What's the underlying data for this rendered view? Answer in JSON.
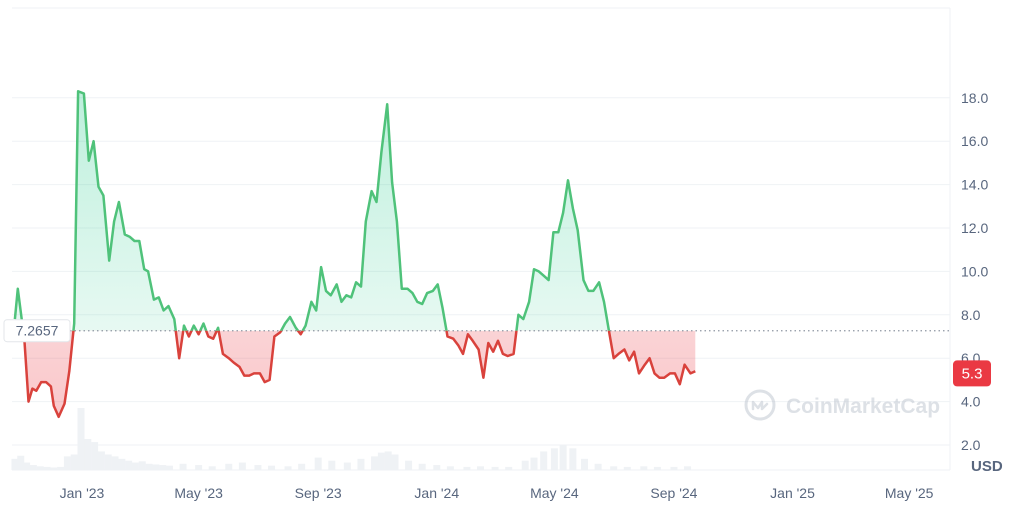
{
  "chart_data": {
    "type": "line",
    "currency_label": "USD",
    "baseline": {
      "value": 7.2657,
      "label": "7.2657"
    },
    "last_price": {
      "value": 5.3,
      "label": "5.3"
    },
    "y_ticks": [
      "2.0",
      "4.0",
      "6.0",
      "8.0",
      "10.0",
      "12.0",
      "14.0",
      "16.0",
      "18.0"
    ],
    "ylim": [
      0,
      20
    ],
    "x_ticks": [
      {
        "date": "2023-01-01",
        "label": "Jan '23"
      },
      {
        "date": "2023-05-01",
        "label": "May '23"
      },
      {
        "date": "2023-09-01",
        "label": "Sep '23"
      },
      {
        "date": "2024-01-01",
        "label": "Jan '24"
      },
      {
        "date": "2024-05-01",
        "label": "May '24"
      },
      {
        "date": "2024-09-01",
        "label": "Sep '24"
      },
      {
        "date": "2025-01-01",
        "label": "Jan '25"
      },
      {
        "date": "2025-05-01",
        "label": "May '25"
      }
    ],
    "xlim": [
      "2022-10-21",
      "2025-06-12"
    ],
    "grid": true,
    "colors": {
      "up": "#16c784",
      "up_line": "#4fc27a",
      "down": "#ea3943",
      "down_line": "#d9423c",
      "volume": "#eff2f5"
    },
    "series": [
      {
        "values": [
          [
            "2022-10-24",
            7.8
          ],
          [
            "2022-10-27",
            9.2
          ],
          [
            "2022-10-31",
            7.8
          ],
          [
            "2022-11-03",
            6.7
          ],
          [
            "2022-11-07",
            4.0
          ],
          [
            "2022-11-11",
            4.6
          ],
          [
            "2022-11-15",
            4.5
          ],
          [
            "2022-11-20",
            4.9
          ],
          [
            "2022-11-25",
            4.9
          ],
          [
            "2022-11-30",
            4.7
          ],
          [
            "2022-12-03",
            3.8
          ],
          [
            "2022-12-08",
            3.3
          ],
          [
            "2022-12-14",
            3.9
          ],
          [
            "2022-12-19",
            5.4
          ],
          [
            "2022-12-24",
            7.6
          ],
          [
            "2022-12-28",
            18.3
          ],
          [
            "2023-01-03",
            18.2
          ],
          [
            "2023-01-08",
            15.1
          ],
          [
            "2023-01-13",
            16.0
          ],
          [
            "2023-01-18",
            13.9
          ],
          [
            "2023-01-23",
            13.5
          ],
          [
            "2023-01-29",
            10.5
          ],
          [
            "2023-02-03",
            12.3
          ],
          [
            "2023-02-08",
            13.2
          ],
          [
            "2023-02-14",
            11.7
          ],
          [
            "2023-02-19",
            11.6
          ],
          [
            "2023-02-24",
            11.4
          ],
          [
            "2023-03-01",
            11.4
          ],
          [
            "2023-03-06",
            10.1
          ],
          [
            "2023-03-10",
            10.0
          ],
          [
            "2023-03-16",
            8.7
          ],
          [
            "2023-03-21",
            8.8
          ],
          [
            "2023-03-26",
            8.2
          ],
          [
            "2023-03-31",
            8.4
          ],
          [
            "2023-04-06",
            7.8
          ],
          [
            "2023-04-11",
            6.0
          ],
          [
            "2023-04-16",
            7.5
          ],
          [
            "2023-04-21",
            7.0
          ],
          [
            "2023-04-26",
            7.5
          ],
          [
            "2023-05-01",
            7.1
          ],
          [
            "2023-05-06",
            7.6
          ],
          [
            "2023-05-11",
            7.0
          ],
          [
            "2023-05-16",
            6.9
          ],
          [
            "2023-05-21",
            7.4
          ],
          [
            "2023-05-26",
            6.2
          ],
          [
            "2023-06-01",
            6.0
          ],
          [
            "2023-06-06",
            5.8
          ],
          [
            "2023-06-12",
            5.6
          ],
          [
            "2023-06-17",
            5.2
          ],
          [
            "2023-06-22",
            5.2
          ],
          [
            "2023-06-27",
            5.3
          ],
          [
            "2023-07-03",
            5.3
          ],
          [
            "2023-07-08",
            4.9
          ],
          [
            "2023-07-13",
            5.0
          ],
          [
            "2023-07-18",
            7.0
          ],
          [
            "2023-07-24",
            7.2
          ],
          [
            "2023-07-29",
            7.6
          ],
          [
            "2023-08-03",
            7.9
          ],
          [
            "2023-08-09",
            7.4
          ],
          [
            "2023-08-14",
            7.1
          ],
          [
            "2023-08-19",
            7.5
          ],
          [
            "2023-08-25",
            8.6
          ],
          [
            "2023-08-30",
            8.2
          ],
          [
            "2023-09-04",
            10.2
          ],
          [
            "2023-09-09",
            9.1
          ],
          [
            "2023-09-14",
            8.9
          ],
          [
            "2023-09-20",
            9.4
          ],
          [
            "2023-09-25",
            8.6
          ],
          [
            "2023-09-30",
            8.9
          ],
          [
            "2023-10-05",
            8.8
          ],
          [
            "2023-10-10",
            9.5
          ],
          [
            "2023-10-15",
            9.3
          ],
          [
            "2023-10-20",
            12.3
          ],
          [
            "2023-10-26",
            13.7
          ],
          [
            "2023-10-31",
            13.2
          ],
          [
            "2023-11-05",
            15.5
          ],
          [
            "2023-11-11",
            17.7
          ],
          [
            "2023-11-16",
            14.1
          ],
          [
            "2023-11-21",
            12.3
          ],
          [
            "2023-11-26",
            9.2
          ],
          [
            "2023-12-02",
            9.2
          ],
          [
            "2023-12-07",
            9.0
          ],
          [
            "2023-12-12",
            8.6
          ],
          [
            "2023-12-17",
            8.5
          ],
          [
            "2023-12-22",
            9.0
          ],
          [
            "2023-12-28",
            9.1
          ],
          [
            "2024-01-02",
            9.4
          ],
          [
            "2024-01-07",
            8.3
          ],
          [
            "2024-01-12",
            7.0
          ],
          [
            "2024-01-18",
            6.9
          ],
          [
            "2024-01-23",
            6.6
          ],
          [
            "2024-01-28",
            6.2
          ],
          [
            "2024-02-02",
            7.1
          ],
          [
            "2024-02-07",
            6.8
          ],
          [
            "2024-02-13",
            6.4
          ],
          [
            "2024-02-18",
            5.1
          ],
          [
            "2024-02-23",
            6.7
          ],
          [
            "2024-02-28",
            6.3
          ],
          [
            "2024-03-04",
            6.8
          ],
          [
            "2024-03-09",
            6.2
          ],
          [
            "2024-03-14",
            6.1
          ],
          [
            "2024-03-20",
            6.2
          ],
          [
            "2024-03-25",
            8.0
          ],
          [
            "2024-03-30",
            7.8
          ],
          [
            "2024-04-05",
            8.6
          ],
          [
            "2024-04-10",
            10.1
          ],
          [
            "2024-04-15",
            10.0
          ],
          [
            "2024-04-20",
            9.8
          ],
          [
            "2024-04-25",
            9.6
          ],
          [
            "2024-04-30",
            11.8
          ],
          [
            "2024-05-05",
            11.8
          ],
          [
            "2024-05-10",
            12.7
          ],
          [
            "2024-05-15",
            14.2
          ],
          [
            "2024-05-20",
            12.9
          ],
          [
            "2024-05-25",
            11.9
          ],
          [
            "2024-05-31",
            9.6
          ],
          [
            "2024-06-05",
            9.1
          ],
          [
            "2024-06-10",
            9.1
          ],
          [
            "2024-06-16",
            9.5
          ],
          [
            "2024-06-21",
            8.6
          ],
          [
            "2024-06-26",
            7.3
          ],
          [
            "2024-07-01",
            6.0
          ],
          [
            "2024-07-06",
            6.2
          ],
          [
            "2024-07-12",
            6.4
          ],
          [
            "2024-07-17",
            5.9
          ],
          [
            "2024-07-22",
            6.3
          ],
          [
            "2024-07-27",
            5.3
          ],
          [
            "2024-08-02",
            5.7
          ],
          [
            "2024-08-07",
            6.0
          ],
          [
            "2024-08-12",
            5.3
          ],
          [
            "2024-08-17",
            5.1
          ],
          [
            "2024-08-22",
            5.1
          ],
          [
            "2024-08-28",
            5.3
          ],
          [
            "2024-09-02",
            5.3
          ],
          [
            "2024-09-07",
            4.8
          ],
          [
            "2024-09-12",
            5.7
          ],
          [
            "2024-09-18",
            5.3
          ],
          [
            "2024-09-23",
            5.4
          ]
        ]
      }
    ],
    "volume": [
      [
        "2022-10-24",
        0.18
      ],
      [
        "2022-10-30",
        0.23
      ],
      [
        "2022-11-05",
        0.12
      ],
      [
        "2022-11-12",
        0.08
      ],
      [
        "2022-11-19",
        0.06
      ],
      [
        "2022-11-26",
        0.05
      ],
      [
        "2022-12-03",
        0.04
      ],
      [
        "2022-12-10",
        0.05
      ],
      [
        "2022-12-17",
        0.22
      ],
      [
        "2022-12-24",
        0.25
      ],
      [
        "2022-12-31",
        1.0
      ],
      [
        "2023-01-07",
        0.5
      ],
      [
        "2023-01-14",
        0.45
      ],
      [
        "2023-01-21",
        0.3
      ],
      [
        "2023-01-28",
        0.25
      ],
      [
        "2023-02-04",
        0.22
      ],
      [
        "2023-02-11",
        0.18
      ],
      [
        "2023-02-18",
        0.15
      ],
      [
        "2023-02-25",
        0.12
      ],
      [
        "2023-03-04",
        0.14
      ],
      [
        "2023-03-11",
        0.1
      ],
      [
        "2023-03-18",
        0.09
      ],
      [
        "2023-03-25",
        0.08
      ],
      [
        "2023-04-01",
        0.07
      ],
      [
        "2023-04-15",
        0.1
      ],
      [
        "2023-05-01",
        0.08
      ],
      [
        "2023-05-15",
        0.06
      ],
      [
        "2023-06-01",
        0.1
      ],
      [
        "2023-06-15",
        0.12
      ],
      [
        "2023-07-01",
        0.08
      ],
      [
        "2023-07-15",
        0.07
      ],
      [
        "2023-08-01",
        0.06
      ],
      [
        "2023-08-15",
        0.1
      ],
      [
        "2023-09-01",
        0.2
      ],
      [
        "2023-09-15",
        0.15
      ],
      [
        "2023-10-01",
        0.12
      ],
      [
        "2023-10-15",
        0.18
      ],
      [
        "2023-10-29",
        0.22
      ],
      [
        "2023-11-05",
        0.28
      ],
      [
        "2023-11-12",
        0.3
      ],
      [
        "2023-11-19",
        0.25
      ],
      [
        "2023-12-03",
        0.15
      ],
      [
        "2023-12-17",
        0.1
      ],
      [
        "2024-01-01",
        0.08
      ],
      [
        "2024-01-15",
        0.06
      ],
      [
        "2024-02-01",
        0.05
      ],
      [
        "2024-02-15",
        0.06
      ],
      [
        "2024-03-01",
        0.05
      ],
      [
        "2024-03-15",
        0.05
      ],
      [
        "2024-04-01",
        0.15
      ],
      [
        "2024-04-10",
        0.2
      ],
      [
        "2024-04-20",
        0.3
      ],
      [
        "2024-05-01",
        0.35
      ],
      [
        "2024-05-10",
        0.4
      ],
      [
        "2024-05-20",
        0.35
      ],
      [
        "2024-06-01",
        0.18
      ],
      [
        "2024-06-15",
        0.1
      ],
      [
        "2024-07-01",
        0.06
      ],
      [
        "2024-07-15",
        0.05
      ],
      [
        "2024-08-01",
        0.06
      ],
      [
        "2024-08-15",
        0.05
      ],
      [
        "2024-09-01",
        0.05
      ],
      [
        "2024-09-15",
        0.06
      ]
    ]
  }
}
